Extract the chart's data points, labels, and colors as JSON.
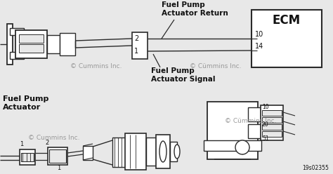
{
  "bg_color": "#e8e8e8",
  "line_color": "#2a2a2a",
  "fill_color": "#ffffff",
  "text_color": "#111111",
  "gray_color": "#999999",
  "doc_id": "19s02355",
  "watermark1": "© Cummins Inc.",
  "watermark2": "© Cümmins Inc.",
  "ecm_label": "ECM",
  "pin10": "10",
  "pin14": "14",
  "pin2": "2",
  "pin1": "1",
  "label_return": "Fuel Pump\nActuator Return",
  "label_signal": "Fuel Pump\nActuator Signal",
  "label_actuator": "Fuel Pump\nActuator"
}
